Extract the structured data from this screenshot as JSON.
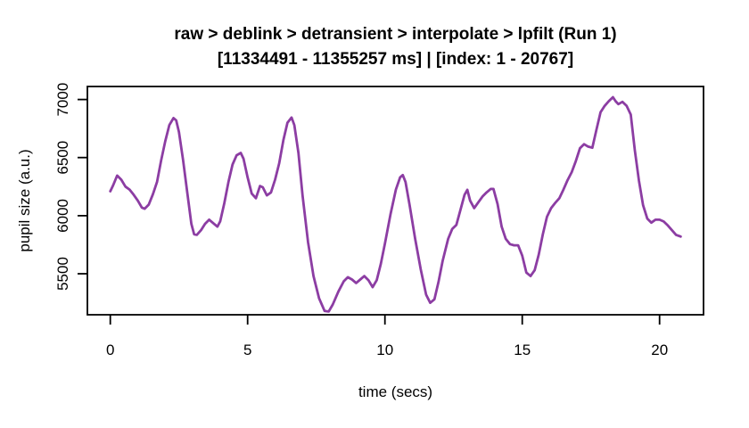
{
  "title": {
    "line1": "raw > deblink > detransient > interpolate > lpfilt (Run 1)",
    "line2": "[11334491 - 11355257 ms] | [index: 1 - 20767]"
  },
  "axes": {
    "xlabel": "time (secs)",
    "ylabel": "pupil size (a.u.)"
  },
  "chart_data": {
    "type": "line",
    "title": "raw > deblink > detransient > interpolate > lpfilt (Run 1)",
    "subtitle": "[11334491 - 11355257 ms] | [index: 1 - 20767]",
    "xlabel": "time (secs)",
    "ylabel": "pupil size (a.u.)",
    "xticks": [
      0,
      5,
      10,
      15,
      20
    ],
    "yticks": [
      5500,
      6000,
      6500,
      7000
    ],
    "xlim": [
      -0.835,
      21.6
    ],
    "ylim": [
      5147,
      7112
    ],
    "grid": false,
    "legend": "none",
    "line_color": "#8C3DA3",
    "axis_color": "#000000",
    "series": [
      {
        "name": "pupil size (a.u.)",
        "x": [
          0,
          0.1,
          0.25,
          0.4,
          0.55,
          0.7,
          0.85,
          1.0,
          1.15,
          1.25,
          1.4,
          1.55,
          1.7,
          1.85,
          2.0,
          2.15,
          2.3,
          2.4,
          2.5,
          2.65,
          2.8,
          2.95,
          3.05,
          3.15,
          3.3,
          3.45,
          3.6,
          3.75,
          3.9,
          4.0,
          4.15,
          4.3,
          4.45,
          4.6,
          4.75,
          4.85,
          5.0,
          5.15,
          5.3,
          5.45,
          5.55,
          5.7,
          5.85,
          6.0,
          6.15,
          6.3,
          6.45,
          6.6,
          6.7,
          6.85,
          7.0,
          7.2,
          7.4,
          7.6,
          7.8,
          7.95,
          8.1,
          8.3,
          8.5,
          8.65,
          8.8,
          8.95,
          9.1,
          9.25,
          9.4,
          9.55,
          9.7,
          9.85,
          10.0,
          10.2,
          10.4,
          10.55,
          10.65,
          10.75,
          10.9,
          11.1,
          11.3,
          11.5,
          11.65,
          11.8,
          11.95,
          12.1,
          12.3,
          12.45,
          12.6,
          12.75,
          12.9,
          13.0,
          13.1,
          13.25,
          13.4,
          13.55,
          13.7,
          13.85,
          13.95,
          14.1,
          14.25,
          14.4,
          14.55,
          14.7,
          14.85,
          15.0,
          15.15,
          15.3,
          15.45,
          15.6,
          15.75,
          15.9,
          16.05,
          16.2,
          16.35,
          16.5,
          16.65,
          16.8,
          16.95,
          17.1,
          17.25,
          17.4,
          17.55,
          17.7,
          17.85,
          18.0,
          18.15,
          18.3,
          18.4,
          18.5,
          18.65,
          18.8,
          18.95,
          19.1,
          19.25,
          19.4,
          19.55,
          19.7,
          19.85,
          20.0,
          20.15,
          20.3,
          20.45,
          20.6,
          20.77
        ],
        "y": [
          6210,
          6260,
          6345,
          6310,
          6250,
          6225,
          6180,
          6130,
          6070,
          6060,
          6095,
          6185,
          6290,
          6475,
          6640,
          6780,
          6840,
          6820,
          6720,
          6480,
          6200,
          5930,
          5840,
          5835,
          5875,
          5930,
          5965,
          5935,
          5905,
          5950,
          6105,
          6290,
          6440,
          6520,
          6540,
          6490,
          6330,
          6190,
          6150,
          6255,
          6245,
          6175,
          6200,
          6310,
          6450,
          6650,
          6800,
          6845,
          6780,
          6540,
          6175,
          5770,
          5480,
          5290,
          5180,
          5175,
          5235,
          5345,
          5435,
          5470,
          5450,
          5420,
          5450,
          5480,
          5445,
          5385,
          5445,
          5585,
          5760,
          6010,
          6225,
          6330,
          6350,
          6290,
          6090,
          5800,
          5540,
          5320,
          5250,
          5280,
          5430,
          5610,
          5800,
          5886,
          5920,
          6050,
          6180,
          6222,
          6130,
          6065,
          6115,
          6165,
          6200,
          6230,
          6230,
          6100,
          5905,
          5800,
          5755,
          5745,
          5745,
          5655,
          5510,
          5480,
          5530,
          5665,
          5840,
          5990,
          6065,
          6110,
          6150,
          6225,
          6305,
          6375,
          6470,
          6580,
          6615,
          6595,
          6585,
          6740,
          6890,
          6945,
          6985,
          7020,
          6985,
          6960,
          6980,
          6945,
          6870,
          6560,
          6300,
          6090,
          5975,
          5940,
          5965,
          5965,
          5950,
          5915,
          5875,
          5835,
          5820
        ]
      }
    ]
  }
}
